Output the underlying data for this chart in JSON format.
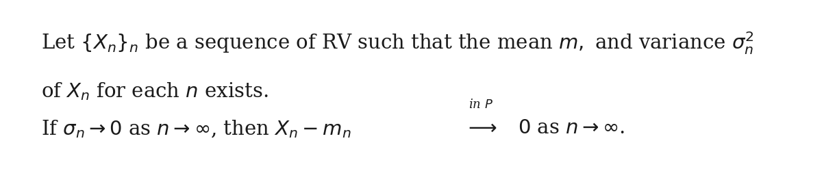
{
  "background_color": "#ffffff",
  "border_color": "#1a1a1a",
  "line1": "Let $\\{X_n\\}_n$ be a sequence of RV such that the mean $m,$ and variance $\\sigma_n^2$",
  "line2": "of $X_n$ for each $n$ exists.",
  "line3_prefix": "If $\\sigma_n \\to 0$ as $n \\to \\infty$, then $X_n - m_n$",
  "line3_suffix": "$0$ as $n \\to \\infty$.",
  "line3_label": "in $P$",
  "line3_arrow": "$\\longrightarrow$",
  "figsize": [
    12.0,
    2.47
  ],
  "dpi": 100,
  "font_size_main": 21,
  "font_size_label": 13,
  "text_color": "#1a1a1a"
}
